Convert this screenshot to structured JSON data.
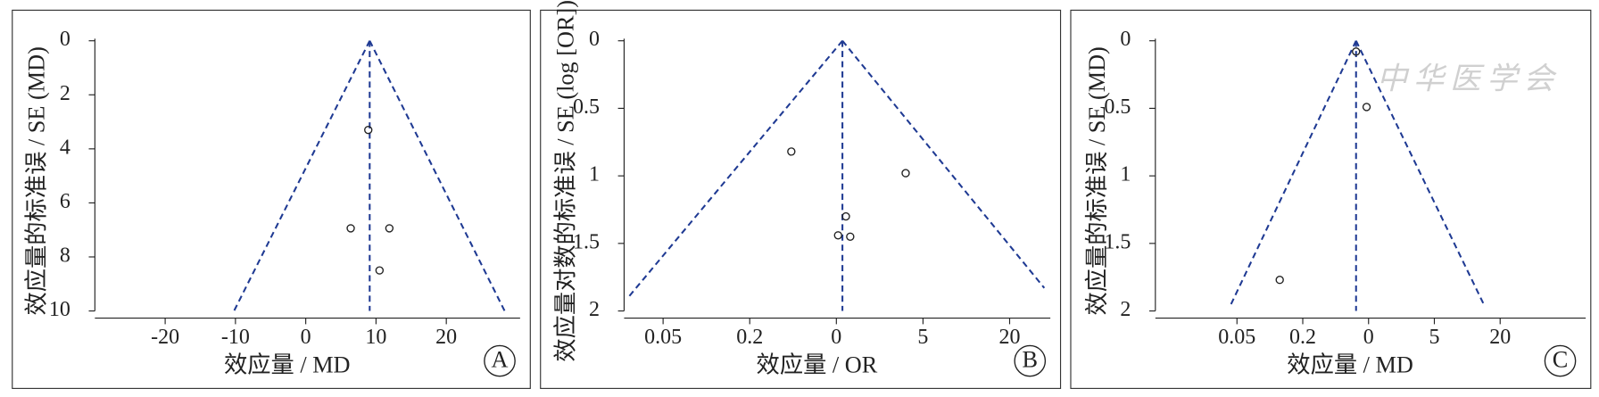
{
  "chart_data": [
    {
      "type": "scatter",
      "panel_label": "A",
      "xlabel": "效应量 / MD",
      "ylabel": "效应量的标准误 / SE (MD)",
      "xlim": [
        -30,
        30.5
      ],
      "ylim": [
        0,
        10
      ],
      "y_inverted": true,
      "xticks": [
        -20,
        -10,
        0,
        10,
        20
      ],
      "yticks": [
        0,
        2,
        4,
        6,
        8,
        10
      ],
      "x": [
        8.9,
        6.4,
        11.9,
        10.5
      ],
      "values": [
        3.3,
        6.94,
        6.94,
        8.5
      ],
      "color": "#222222",
      "funnel_color": "#1f3a93",
      "funnel_lines": [
        {
          "x": [
            9.1,
            -10.2
          ],
          "values": [
            0,
            10
          ]
        },
        {
          "x": [
            9.1,
            28.3
          ],
          "values": [
            0,
            10
          ]
        },
        {
          "x": [
            9.1,
            9.1
          ],
          "values": [
            0,
            10
          ]
        }
      ]
    },
    {
      "type": "scatter",
      "panel_label": "B",
      "xlabel": "效应量 / OR",
      "ylabel": "效应量对数的标准误 / SE (log [OR])",
      "xlim": [
        -2.45,
        2.47
      ],
      "ylim": [
        0,
        2
      ],
      "y_inverted": true,
      "xticks": [
        {
          "value": -2,
          "label": "0.05"
        },
        {
          "value": -1,
          "label": "0.2"
        },
        0,
        {
          "value": 1,
          "label": "5"
        },
        {
          "value": 2,
          "label": "20"
        }
      ],
      "yticks": [
        0,
        0.5,
        1,
        1.5,
        2
      ],
      "x": [
        -0.52,
        0.8,
        0.11,
        0.02,
        0.16
      ],
      "values": [
        0.82,
        0.98,
        1.3,
        1.44,
        1.45
      ],
      "color": "#222222",
      "funnel_color": "#1f3a93",
      "funnel_lines": [
        {
          "x": [
            0.07,
            -2.39
          ],
          "values": [
            0,
            1.89
          ]
        },
        {
          "x": [
            0.07,
            2.4
          ],
          "values": [
            0,
            1.83
          ]
        },
        {
          "x": [
            0.07,
            0.07
          ],
          "values": [
            0,
            2
          ]
        }
      ]
    },
    {
      "type": "scatter",
      "panel_label": "C",
      "xlabel": "效应量 / MD",
      "ylabel": "效应量的标准误 / SE (MD)",
      "xlim": [
        -3.24,
        3.3
      ],
      "ylim": [
        0,
        2
      ],
      "y_inverted": true,
      "xticks": [
        {
          "value": -2,
          "label": "0.05"
        },
        {
          "value": -1,
          "label": "0.2"
        },
        0,
        {
          "value": 1,
          "label": "5"
        },
        {
          "value": 2,
          "label": "20"
        }
      ],
      "yticks": [
        0,
        0.5,
        1,
        1.5,
        2
      ],
      "x": [
        -0.19,
        -0.03,
        -1.35
      ],
      "values": [
        0.08,
        0.49,
        1.77
      ],
      "color": "#222222",
      "funnel_color": "#1f3a93",
      "watermark": "中华医学会",
      "funnel_lines": [
        {
          "x": [
            -0.19,
            -2.09
          ],
          "values": [
            0,
            1.95
          ]
        },
        {
          "x": [
            -0.19,
            1.75
          ],
          "values": [
            0,
            1.95
          ]
        },
        {
          "x": [
            -0.19,
            -0.19
          ],
          "values": [
            0,
            2
          ]
        }
      ]
    }
  ]
}
